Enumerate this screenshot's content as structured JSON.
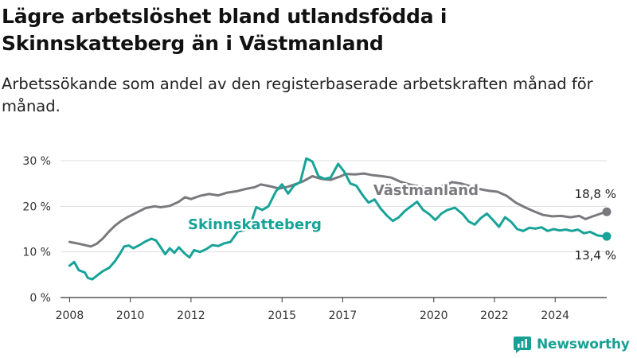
{
  "title": "Lägre arbetslöshet bland utlandsfödda i Skinnskatteberg än i Västmanland",
  "subtitle": "Arbetssökande som andel av den registerbaserade arbetskraften månad för månad.",
  "logo_text": "Newsworthy",
  "colors": {
    "skinnskatteberg": "#17a398",
    "vastmanland": "#7a7a7e",
    "grid": "#dddddd",
    "axis": "#333333"
  },
  "chart_data": {
    "type": "line",
    "title": "Lägre arbetslöshet bland utlandsfödda i Skinnskatteberg än i Västmanland",
    "subtitle": "Arbetssökande som andel av den registerbaserade arbetskraften månad för månad.",
    "xlabel": "",
    "ylabel": "",
    "xlim": [
      2007.7,
      2025.7
    ],
    "ylim": [
      0,
      30
    ],
    "yticks": [
      0,
      10,
      20,
      30
    ],
    "ytick_labels": [
      "0 %",
      "10 %",
      "20 %",
      "30 %"
    ],
    "xticks": [
      2008,
      2010,
      2012,
      2015,
      2017,
      2020,
      2022,
      2024
    ],
    "xtick_labels": [
      "2008",
      "2010",
      "2012",
      "2015",
      "2017",
      "2020",
      "2022",
      "2024"
    ],
    "grid": true,
    "series": [
      {
        "name": "Västmanland",
        "color": "#7a7a7e",
        "end_label": "18,8 %",
        "points": [
          [
            2008.0,
            12.2
          ],
          [
            2008.3,
            11.8
          ],
          [
            2008.5,
            11.5
          ],
          [
            2008.7,
            11.2
          ],
          [
            2008.9,
            11.8
          ],
          [
            2009.1,
            13.0
          ],
          [
            2009.3,
            14.5
          ],
          [
            2009.5,
            15.8
          ],
          [
            2009.7,
            16.8
          ],
          [
            2009.9,
            17.6
          ],
          [
            2010.2,
            18.6
          ],
          [
            2010.5,
            19.6
          ],
          [
            2010.8,
            20.0
          ],
          [
            2011.0,
            19.8
          ],
          [
            2011.3,
            20.1
          ],
          [
            2011.6,
            21.0
          ],
          [
            2011.8,
            22.0
          ],
          [
            2012.0,
            21.6
          ],
          [
            2012.3,
            22.3
          ],
          [
            2012.6,
            22.7
          ],
          [
            2012.9,
            22.4
          ],
          [
            2013.2,
            23.0
          ],
          [
            2013.5,
            23.3
          ],
          [
            2013.8,
            23.8
          ],
          [
            2014.1,
            24.2
          ],
          [
            2014.3,
            24.8
          ],
          [
            2014.6,
            24.4
          ],
          [
            2014.9,
            23.9
          ],
          [
            2015.2,
            24.3
          ],
          [
            2015.5,
            25.0
          ],
          [
            2015.7,
            25.5
          ],
          [
            2016.0,
            26.6
          ],
          [
            2016.3,
            26.0
          ],
          [
            2016.6,
            25.8
          ],
          [
            2016.9,
            26.5
          ],
          [
            2017.1,
            27.1
          ],
          [
            2017.4,
            27.0
          ],
          [
            2017.7,
            27.2
          ],
          [
            2018.0,
            26.8
          ],
          [
            2018.3,
            26.6
          ],
          [
            2018.6,
            26.3
          ],
          [
            2018.9,
            25.4
          ],
          [
            2019.2,
            24.8
          ],
          [
            2019.5,
            24.4
          ],
          [
            2019.8,
            24.2
          ],
          [
            2020.1,
            24.3
          ],
          [
            2020.4,
            24.5
          ],
          [
            2020.6,
            25.3
          ],
          [
            2020.9,
            25.0
          ],
          [
            2021.2,
            24.4
          ],
          [
            2021.5,
            23.8
          ],
          [
            2021.8,
            23.4
          ],
          [
            2022.1,
            23.2
          ],
          [
            2022.4,
            22.3
          ],
          [
            2022.7,
            20.8
          ],
          [
            2023.0,
            19.8
          ],
          [
            2023.3,
            18.9
          ],
          [
            2023.6,
            18.1
          ],
          [
            2023.9,
            17.8
          ],
          [
            2024.2,
            17.9
          ],
          [
            2024.5,
            17.6
          ],
          [
            2024.8,
            17.9
          ],
          [
            2025.0,
            17.2
          ],
          [
            2025.2,
            17.7
          ],
          [
            2025.5,
            18.4
          ],
          [
            2025.7,
            18.8
          ]
        ]
      },
      {
        "name": "Skinnskatteberg",
        "color": "#17a398",
        "end_label": "13,4 %",
        "points": [
          [
            2008.0,
            7.0
          ],
          [
            2008.15,
            7.8
          ],
          [
            2008.3,
            6.0
          ],
          [
            2008.5,
            5.5
          ],
          [
            2008.6,
            4.3
          ],
          [
            2008.75,
            4.0
          ],
          [
            2008.9,
            4.8
          ],
          [
            2009.1,
            5.8
          ],
          [
            2009.3,
            6.5
          ],
          [
            2009.5,
            8.0
          ],
          [
            2009.65,
            9.5
          ],
          [
            2009.8,
            11.2
          ],
          [
            2009.95,
            11.4
          ],
          [
            2010.1,
            10.8
          ],
          [
            2010.3,
            11.5
          ],
          [
            2010.5,
            12.3
          ],
          [
            2010.7,
            12.9
          ],
          [
            2010.85,
            12.5
          ],
          [
            2011.0,
            11.0
          ],
          [
            2011.15,
            9.5
          ],
          [
            2011.3,
            10.8
          ],
          [
            2011.45,
            9.8
          ],
          [
            2011.6,
            11.0
          ],
          [
            2011.8,
            9.6
          ],
          [
            2011.95,
            8.8
          ],
          [
            2012.1,
            10.4
          ],
          [
            2012.3,
            10.0
          ],
          [
            2012.5,
            10.6
          ],
          [
            2012.7,
            11.5
          ],
          [
            2012.9,
            11.3
          ],
          [
            2013.1,
            11.9
          ],
          [
            2013.3,
            12.2
          ],
          [
            2013.55,
            14.5
          ],
          [
            2013.8,
            14.8
          ],
          [
            2013.95,
            15.8
          ],
          [
            2014.15,
            19.8
          ],
          [
            2014.35,
            19.2
          ],
          [
            2014.55,
            20.0
          ],
          [
            2014.8,
            23.3
          ],
          [
            2015.0,
            24.8
          ],
          [
            2015.2,
            22.8
          ],
          [
            2015.4,
            24.6
          ],
          [
            2015.6,
            25.3
          ],
          [
            2015.8,
            30.5
          ],
          [
            2016.0,
            29.8
          ],
          [
            2016.2,
            26.6
          ],
          [
            2016.4,
            26.0
          ],
          [
            2016.6,
            26.3
          ],
          [
            2016.85,
            29.3
          ],
          [
            2017.05,
            27.6
          ],
          [
            2017.25,
            25.0
          ],
          [
            2017.45,
            24.5
          ],
          [
            2017.65,
            22.5
          ],
          [
            2017.85,
            20.8
          ],
          [
            2018.05,
            21.5
          ],
          [
            2018.25,
            19.5
          ],
          [
            2018.45,
            18.0
          ],
          [
            2018.65,
            16.8
          ],
          [
            2018.85,
            17.6
          ],
          [
            2019.05,
            19.0
          ],
          [
            2019.25,
            20.0
          ],
          [
            2019.45,
            21.0
          ],
          [
            2019.65,
            19.2
          ],
          [
            2019.85,
            18.3
          ],
          [
            2020.05,
            17.0
          ],
          [
            2020.25,
            18.4
          ],
          [
            2020.45,
            19.2
          ],
          [
            2020.7,
            19.7
          ],
          [
            2020.95,
            18.3
          ],
          [
            2021.15,
            16.7
          ],
          [
            2021.35,
            16.0
          ],
          [
            2021.55,
            17.4
          ],
          [
            2021.75,
            18.4
          ],
          [
            2021.95,
            17.0
          ],
          [
            2022.15,
            15.5
          ],
          [
            2022.35,
            17.6
          ],
          [
            2022.55,
            16.6
          ],
          [
            2022.75,
            15.0
          ],
          [
            2022.95,
            14.6
          ],
          [
            2023.15,
            15.3
          ],
          [
            2023.35,
            15.1
          ],
          [
            2023.55,
            15.4
          ],
          [
            2023.75,
            14.6
          ],
          [
            2023.95,
            15.0
          ],
          [
            2024.15,
            14.7
          ],
          [
            2024.35,
            14.9
          ],
          [
            2024.55,
            14.6
          ],
          [
            2024.75,
            14.9
          ],
          [
            2024.95,
            14.1
          ],
          [
            2025.15,
            14.4
          ],
          [
            2025.4,
            13.6
          ],
          [
            2025.7,
            13.4
          ]
        ]
      }
    ]
  }
}
